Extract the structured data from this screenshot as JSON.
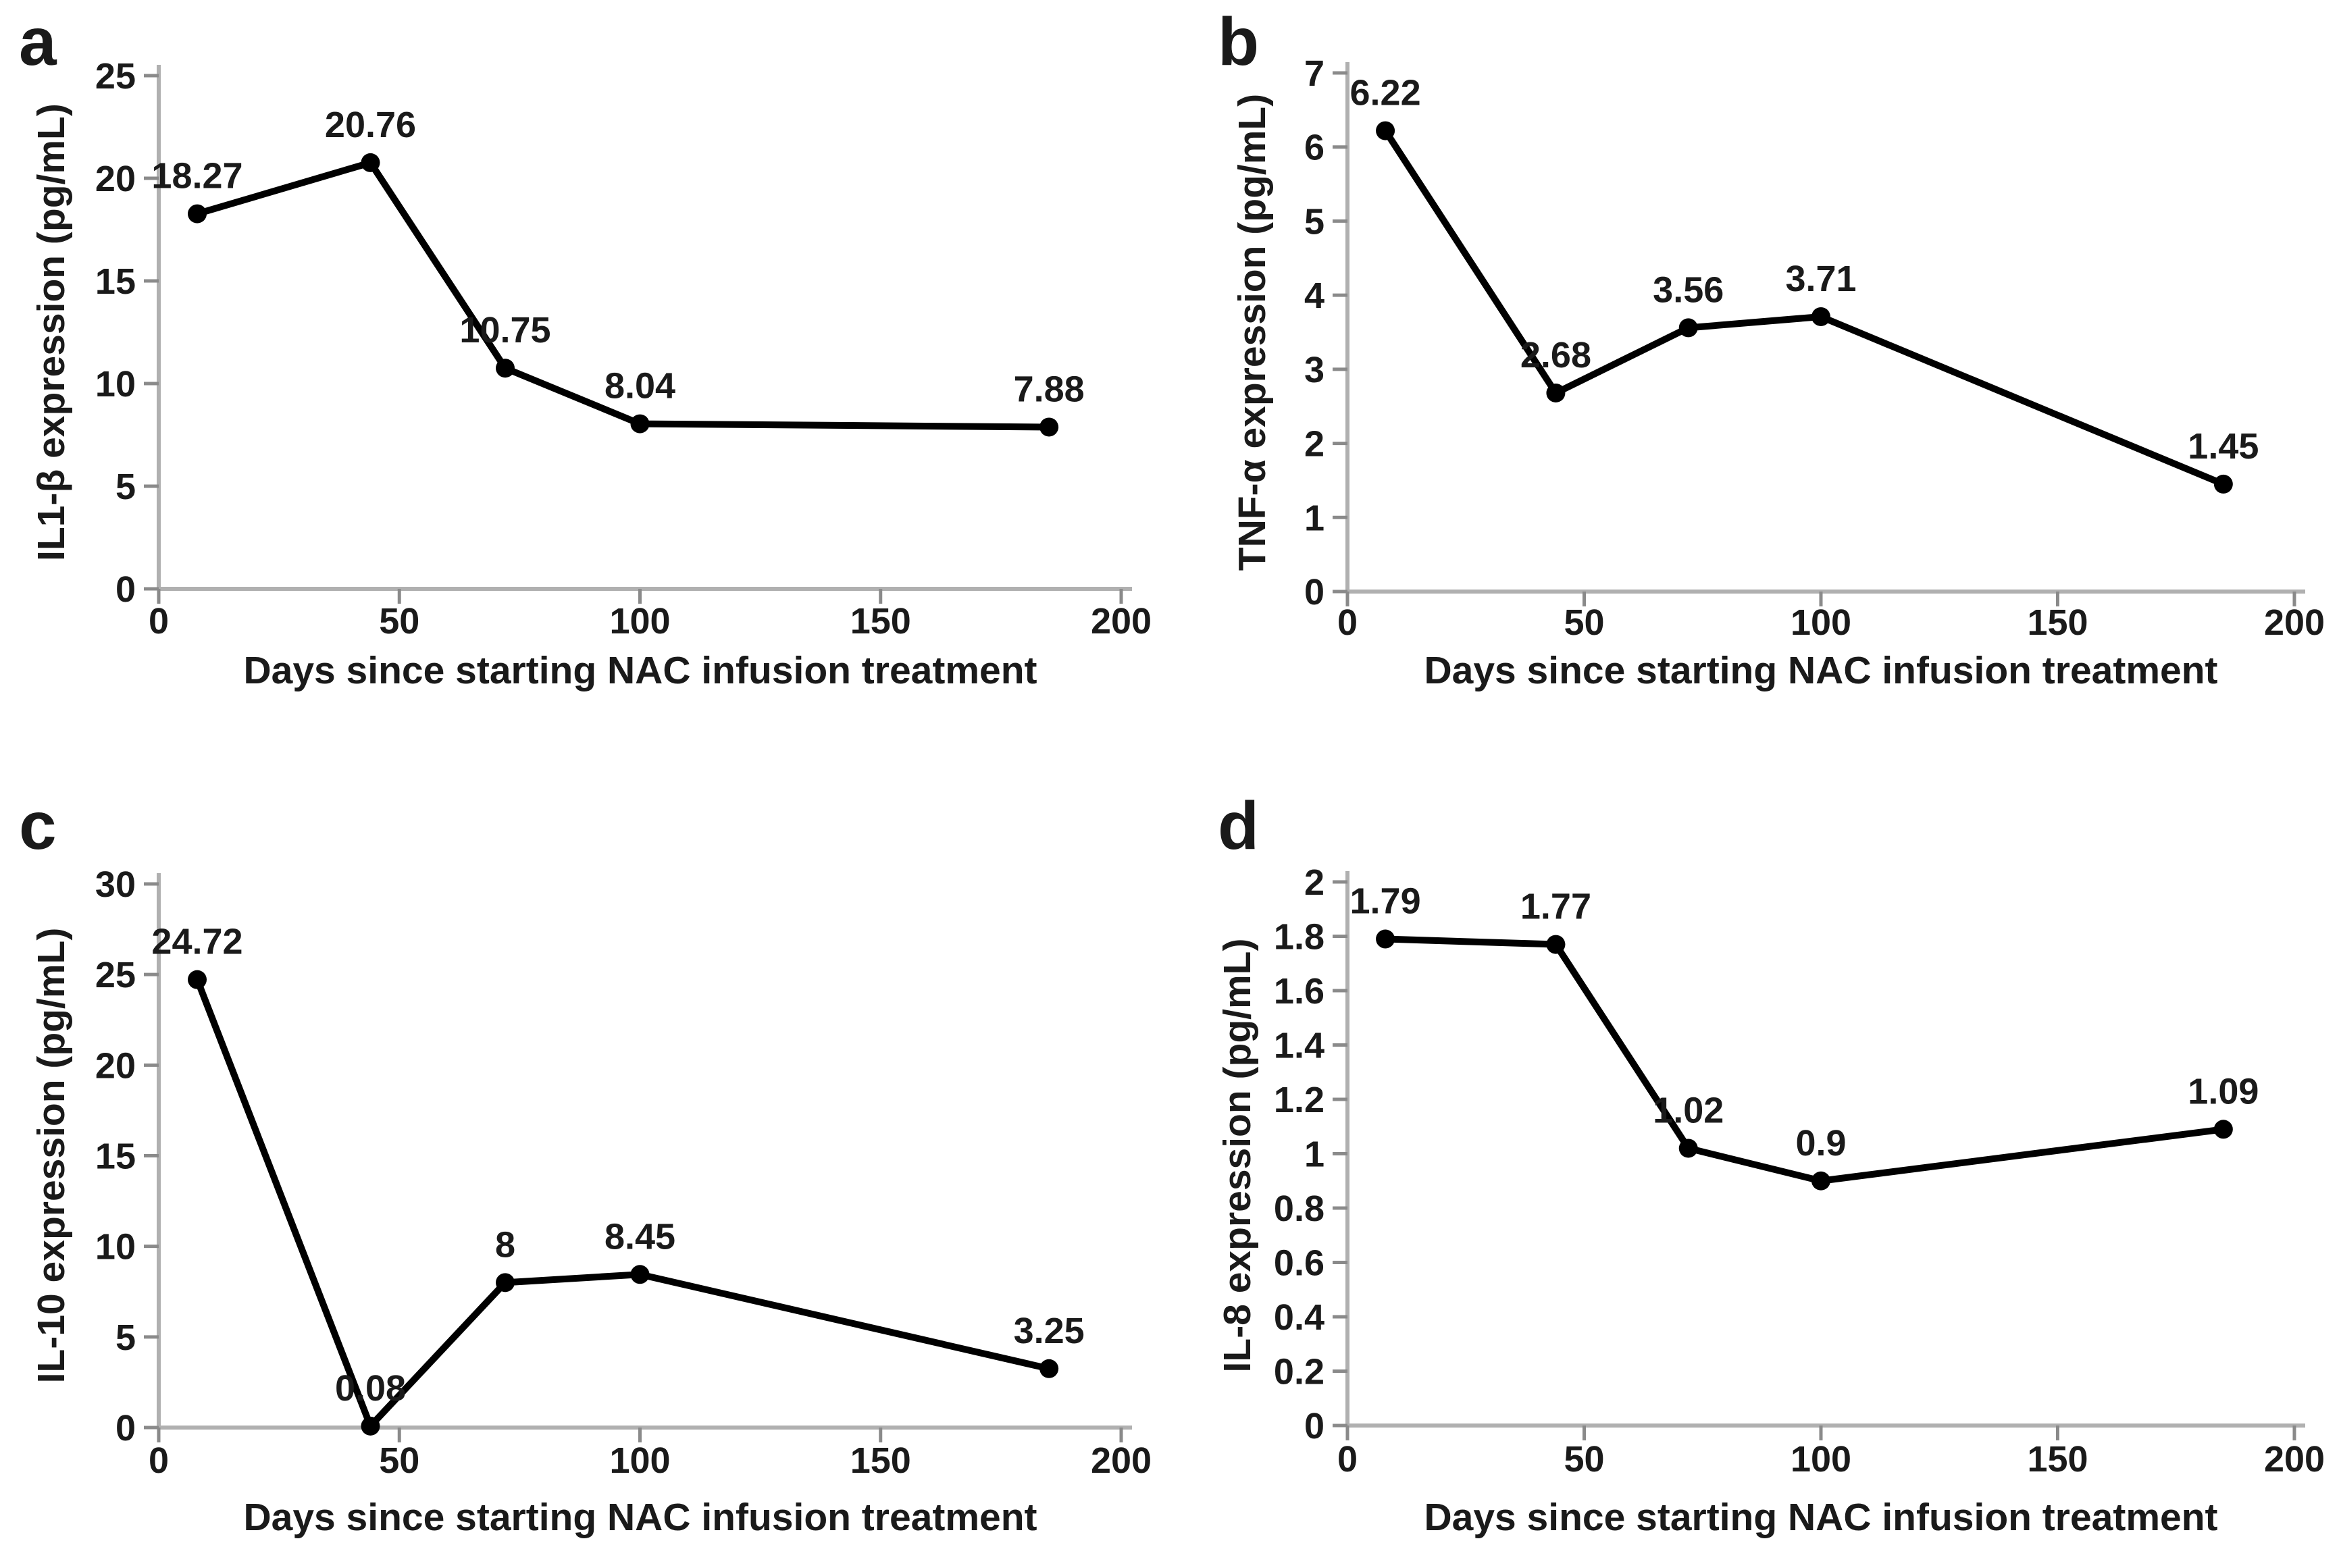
{
  "colors": {
    "line": "#000000",
    "text": "#1a1a1a",
    "axis": "#b0b0b0",
    "tick": "#8a8a8a",
    "background": "#ffffff"
  },
  "chart_data": [
    {
      "type": "line",
      "panel": "a",
      "series_name": "IL1-β",
      "xlabel": "Days since starting NAC infusion treatment",
      "ylabel": "IL1-β expression (pg/mL)",
      "x": [
        8,
        44,
        72,
        100,
        185
      ],
      "values": [
        18.27,
        20.76,
        10.75,
        8.04,
        7.88
      ],
      "point_labels": [
        "18.27",
        "20.76",
        "10.75",
        "8.04",
        "7.88"
      ],
      "xlim": [
        0,
        200
      ],
      "ylim": [
        0,
        25
      ],
      "xticks": [
        0,
        50,
        100,
        150,
        200
      ],
      "yticks": [
        0,
        5,
        10,
        15,
        20,
        25
      ],
      "ytick_labels": [
        "0",
        "5",
        "10",
        "15",
        "20",
        "25"
      ],
      "grid": false,
      "legend": "none",
      "marker": "circle"
    },
    {
      "type": "line",
      "panel": "b",
      "series_name": "TNF-α",
      "xlabel": "Days since starting NAC infusion treatment",
      "ylabel": "TNF-α expression (pg/mL)",
      "x": [
        8,
        44,
        72,
        100,
        185
      ],
      "values": [
        6.22,
        2.68,
        3.56,
        3.71,
        1.45
      ],
      "point_labels": [
        "6.22",
        "2.68",
        "3.56",
        "3.71",
        "1.45"
      ],
      "xlim": [
        0,
        200
      ],
      "ylim": [
        0,
        7
      ],
      "xticks": [
        0,
        50,
        100,
        150,
        200
      ],
      "yticks": [
        0,
        1,
        2,
        3,
        4,
        5,
        6,
        7
      ],
      "ytick_labels": [
        "0",
        "1",
        "2",
        "3",
        "4",
        "5",
        "6",
        "7"
      ],
      "grid": false,
      "legend": "none",
      "marker": "circle"
    },
    {
      "type": "line",
      "panel": "c",
      "series_name": "IL-10",
      "xlabel": "Days since starting NAC infusion treatment",
      "ylabel": "IL-10 expression (pg/mL)",
      "x": [
        8,
        44,
        72,
        100,
        185
      ],
      "values": [
        24.72,
        0.08,
        8,
        8.45,
        3.25
      ],
      "point_labels": [
        "24.72",
        "0.08",
        "8",
        "8.45",
        "3.25"
      ],
      "xlim": [
        0,
        200
      ],
      "ylim": [
        0,
        30
      ],
      "xticks": [
        0,
        50,
        100,
        150,
        200
      ],
      "yticks": [
        0,
        5,
        10,
        15,
        20,
        25,
        30
      ],
      "ytick_labels": [
        "0",
        "5",
        "10",
        "15",
        "20",
        "25",
        "30"
      ],
      "grid": false,
      "legend": "none",
      "marker": "circle"
    },
    {
      "type": "line",
      "panel": "d",
      "series_name": "IL-8",
      "xlabel": "Days since starting NAC infusion treatment",
      "ylabel": "IL-8 expression (pg/mL)",
      "x": [
        8,
        44,
        72,
        100,
        185
      ],
      "values": [
        1.79,
        1.77,
        1.02,
        0.9,
        1.09
      ],
      "point_labels": [
        "1.79",
        "1.77",
        "1.02",
        "0.9",
        "1.09"
      ],
      "xlim": [
        0,
        200
      ],
      "ylim": [
        0,
        2
      ],
      "xticks": [
        0,
        50,
        100,
        150,
        200
      ],
      "yticks": [
        0,
        0.2,
        0.4,
        0.6,
        0.8,
        1,
        1.2,
        1.4,
        1.6,
        1.8,
        2
      ],
      "ytick_labels": [
        "0",
        "0.2",
        "0.4",
        "0.6",
        "0.8",
        "1",
        "1.2",
        "1.4",
        "1.6",
        "1.8",
        "2"
      ],
      "grid": false,
      "legend": "none",
      "marker": "circle"
    }
  ]
}
